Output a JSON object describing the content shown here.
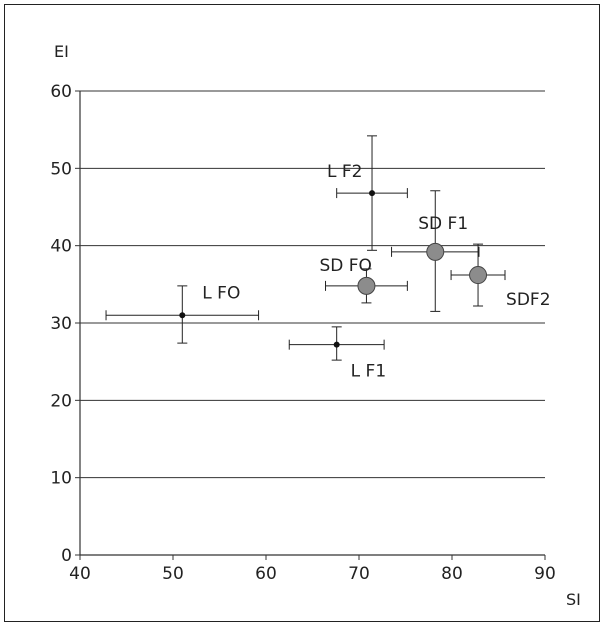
{
  "chart_data": {
    "type": "scatter",
    "title": "",
    "xlabel": "SI",
    "ylabel": "EI",
    "xlim": [
      40,
      90
    ],
    "ylim": [
      0,
      60
    ],
    "x_ticks": [
      "40",
      "50",
      "60",
      "70",
      "80",
      "90"
    ],
    "y_ticks": [
      "0",
      "10",
      "20",
      "30",
      "40",
      "50",
      "60"
    ],
    "grid": "horizontal",
    "legend": "none",
    "points": [
      {
        "label": "L FO",
        "x": 51.0,
        "y": 31.0,
        "x_err": 8.2,
        "y_err_up": 3.8,
        "y_err_down": 3.6,
        "marker": "small"
      },
      {
        "label": "L F1",
        "x": 67.6,
        "y": 27.2,
        "x_err": 5.1,
        "y_err_up": 2.3,
        "y_err_down": 2.0,
        "marker": "small"
      },
      {
        "label": "L F2",
        "x": 71.4,
        "y": 46.8,
        "x_err": 3.8,
        "y_err_up": 7.4,
        "y_err_down": 7.4,
        "marker": "small"
      },
      {
        "label": "SD FO",
        "x": 70.8,
        "y": 34.8,
        "x_err": 4.4,
        "y_err_up": 2.2,
        "y_err_down": 2.2,
        "marker": "large"
      },
      {
        "label": "SD F1",
        "x": 78.2,
        "y": 39.2,
        "x_err": 4.7,
        "y_err_up": 7.9,
        "y_err_down": 7.7,
        "marker": "large"
      },
      {
        "label": "SDF2",
        "x": 82.8,
        "y": 36.2,
        "x_err": 2.9,
        "y_err_up": 4.0,
        "y_err_down": 4.0,
        "marker": "large"
      }
    ],
    "colors": {
      "large_marker_fill": "#8c8c8c",
      "small_marker_fill": "#111111",
      "line": "#222222"
    }
  }
}
